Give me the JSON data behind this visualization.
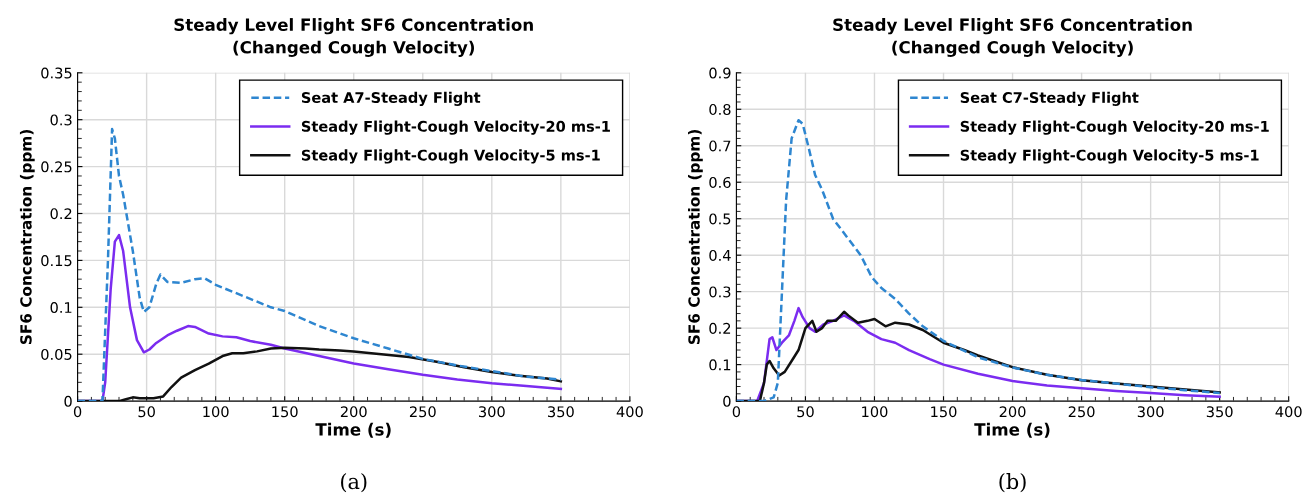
{
  "chart_data": [
    {
      "type": "line",
      "title": "Steady Level Flight SF6 Concentration",
      "subtitle": "(Changed Cough Velocity)",
      "xlabel": "Time (s)",
      "ylabel": "SF6 Concentration (ppm)",
      "annotations": [
        "(a)"
      ],
      "xlim": [
        0,
        400
      ],
      "xticks": [
        0,
        50,
        100,
        150,
        200,
        250,
        300,
        350,
        400
      ],
      "ylim": [
        0,
        0.35
      ],
      "yticks": [
        0,
        0.05,
        0.1,
        0.15,
        0.2,
        0.25,
        0.3,
        0.35
      ],
      "grid": true,
      "legend": "top right",
      "series": [
        {
          "name": "Seat A7-Steady Flight",
          "color": "#2e86d0",
          "line_style": "dashed",
          "x": [
            0,
            18,
            22,
            25,
            27,
            30,
            33,
            40,
            45,
            48,
            52,
            57,
            60,
            65,
            75,
            85,
            92,
            100,
            120,
            140,
            150,
            175,
            200,
            225,
            250,
            275,
            300,
            325,
            350
          ],
          "values": [
            0,
            0,
            0.15,
            0.29,
            0.28,
            0.24,
            0.22,
            0.16,
            0.11,
            0.095,
            0.1,
            0.125,
            0.135,
            0.127,
            0.126,
            0.13,
            0.131,
            0.124,
            0.112,
            0.1,
            0.096,
            0.08,
            0.067,
            0.056,
            0.045,
            0.038,
            0.032,
            0.026,
            0.023
          ]
        },
        {
          "name": "Steady Flight-Cough Velocity-20 ms-1",
          "color": "#7b2cf0",
          "line_style": "solid",
          "x": [
            0,
            18,
            20,
            24,
            27,
            30,
            33,
            38,
            43,
            48,
            52,
            57,
            65,
            72,
            80,
            85,
            95,
            105,
            115,
            125,
            140,
            150,
            175,
            200,
            225,
            250,
            275,
            300,
            325,
            350
          ],
          "values": [
            0,
            0,
            0.02,
            0.12,
            0.17,
            0.177,
            0.16,
            0.1,
            0.065,
            0.052,
            0.055,
            0.062,
            0.07,
            0.075,
            0.08,
            0.079,
            0.072,
            0.069,
            0.068,
            0.064,
            0.06,
            0.056,
            0.048,
            0.04,
            0.034,
            0.028,
            0.023,
            0.019,
            0.016,
            0.013
          ]
        },
        {
          "name": "Steady Flight-Cough Velocity-5 ms-1",
          "color": "#111111",
          "line_style": "solid",
          "x": [
            0,
            30,
            35,
            40,
            45,
            55,
            62,
            68,
            75,
            85,
            95,
            105,
            112,
            120,
            130,
            140,
            150,
            165,
            175,
            190,
            200,
            220,
            240,
            260,
            280,
            300,
            320,
            340,
            350
          ],
          "values": [
            0,
            0,
            0.002,
            0.004,
            0.003,
            0.003,
            0.005,
            0.015,
            0.025,
            0.033,
            0.04,
            0.048,
            0.051,
            0.051,
            0.053,
            0.056,
            0.057,
            0.056,
            0.055,
            0.054,
            0.053,
            0.05,
            0.047,
            0.042,
            0.036,
            0.031,
            0.027,
            0.024,
            0.021
          ]
        }
      ]
    },
    {
      "type": "line",
      "title": "Steady Level Flight SF6 Concentration",
      "subtitle": "(Changed Cough Velocity)",
      "xlabel": "Time (s)",
      "ylabel": "SF6 Concentration (ppm)",
      "annotations": [
        "(b)"
      ],
      "xlim": [
        0,
        400
      ],
      "xticks": [
        0,
        50,
        100,
        150,
        200,
        250,
        300,
        350,
        400
      ],
      "ylim": [
        0,
        0.9
      ],
      "yticks": [
        0,
        0.1,
        0.2,
        0.3,
        0.4,
        0.5,
        0.6,
        0.7,
        0.8,
        0.9
      ],
      "grid": true,
      "legend": "top right",
      "series": [
        {
          "name": "Seat C7-Steady Flight",
          "color": "#2e86d0",
          "line_style": "dashed",
          "x": [
            0,
            20,
            27,
            30,
            33,
            36,
            40,
            45,
            48,
            52,
            57,
            62,
            70,
            80,
            90,
            98,
            105,
            115,
            125,
            135,
            150,
            175,
            200,
            225,
            250,
            275,
            300,
            325,
            350
          ],
          "values": [
            0,
            0,
            0.01,
            0.05,
            0.3,
            0.55,
            0.72,
            0.77,
            0.76,
            0.7,
            0.62,
            0.58,
            0.5,
            0.45,
            0.4,
            0.34,
            0.31,
            0.28,
            0.24,
            0.205,
            0.165,
            0.12,
            0.092,
            0.072,
            0.058,
            0.048,
            0.038,
            0.03,
            0.022
          ]
        },
        {
          "name": "Steady Flight-Cough Velocity-20 ms-1",
          "color": "#7b2cf0",
          "line_style": "solid",
          "x": [
            0,
            15,
            20,
            24,
            26,
            29,
            33,
            38,
            42,
            45,
            48,
            53,
            57,
            63,
            70,
            78,
            85,
            95,
            105,
            115,
            125,
            140,
            150,
            175,
            200,
            225,
            250,
            275,
            300,
            325,
            350
          ],
          "values": [
            0,
            0,
            0.05,
            0.17,
            0.175,
            0.14,
            0.16,
            0.18,
            0.22,
            0.255,
            0.23,
            0.2,
            0.19,
            0.21,
            0.22,
            0.235,
            0.22,
            0.19,
            0.17,
            0.16,
            0.14,
            0.115,
            0.1,
            0.075,
            0.055,
            0.043,
            0.035,
            0.028,
            0.022,
            0.016,
            0.012
          ]
        },
        {
          "name": "Steady Flight-Cough Velocity-5 ms-1",
          "color": "#111111",
          "line_style": "solid",
          "x": [
            0,
            17,
            20,
            22,
            24,
            27,
            31,
            35,
            40,
            45,
            50,
            55,
            58,
            62,
            66,
            72,
            78,
            81,
            88,
            95,
            100,
            108,
            115,
            125,
            135,
            150,
            165,
            175,
            200,
            225,
            250,
            275,
            300,
            325,
            350
          ],
          "values": [
            0,
            0,
            0.05,
            0.1,
            0.11,
            0.09,
            0.07,
            0.08,
            0.11,
            0.14,
            0.2,
            0.22,
            0.19,
            0.2,
            0.22,
            0.22,
            0.245,
            0.235,
            0.215,
            0.22,
            0.225,
            0.205,
            0.215,
            0.21,
            0.195,
            0.16,
            0.14,
            0.125,
            0.093,
            0.072,
            0.057,
            0.048,
            0.04,
            0.032,
            0.024
          ]
        }
      ]
    }
  ]
}
